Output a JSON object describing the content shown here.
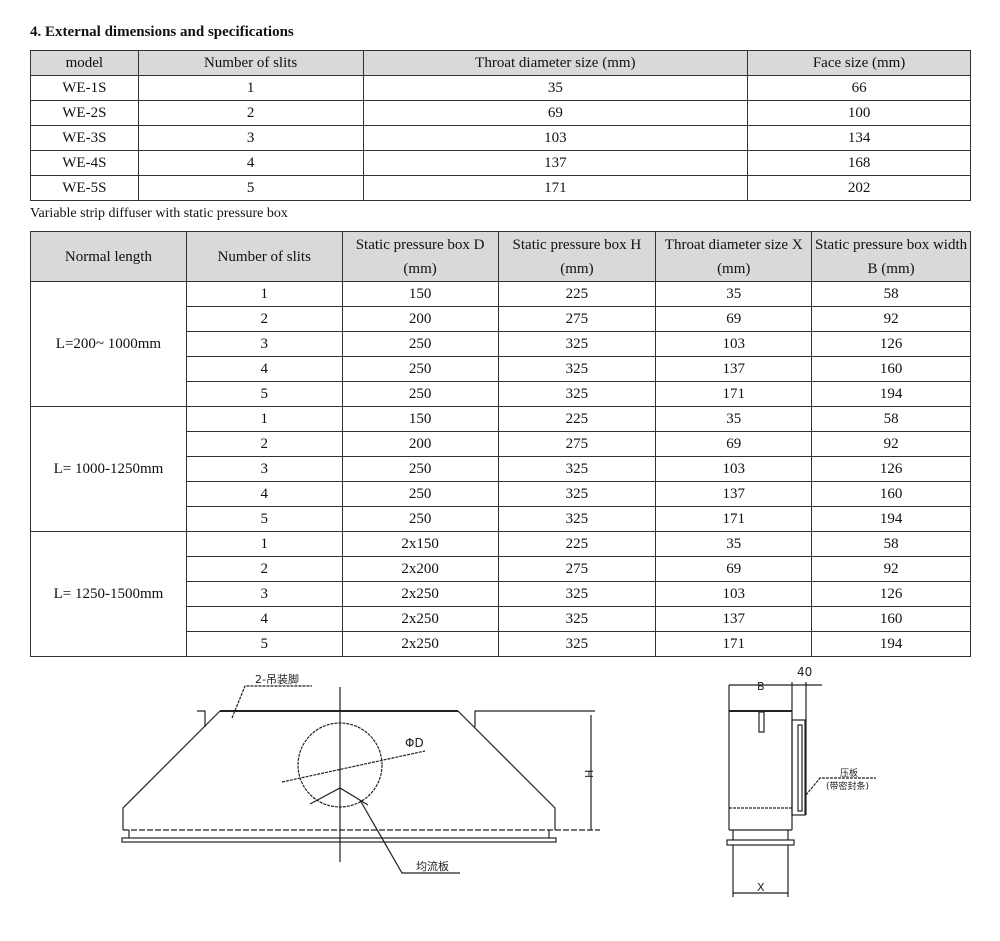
{
  "title": "4. External dimensions and specifications",
  "table1": {
    "headers": [
      "model",
      "Number of slits",
      "Throat diameter size (mm)",
      "Face size (mm)"
    ],
    "rows": [
      [
        "WE-1S",
        "1",
        "35",
        "66"
      ],
      [
        "WE-2S",
        "2",
        "69",
        "100"
      ],
      [
        "WE-3S",
        "3",
        "103",
        "134"
      ],
      [
        "WE-4S",
        "4",
        "137",
        "168"
      ],
      [
        "WE-5S",
        "5",
        "171",
        "202"
      ]
    ]
  },
  "caption": "Variable strip diffuser with static pressure box",
  "table2": {
    "headers": [
      "Normal length",
      "Number of slits",
      "Static pressure box D (mm)",
      "Static pressure box H (mm)",
      "Throat diameter size X (mm)",
      "Static pressure box width B (mm)"
    ],
    "groups": [
      {
        "length": "L=200~ 1000mm",
        "rows": [
          [
            "1",
            "150",
            "225",
            "35",
            "58"
          ],
          [
            "2",
            "200",
            "275",
            "69",
            "92"
          ],
          [
            "3",
            "250",
            "325",
            "103",
            "126"
          ],
          [
            "4",
            "250",
            "325",
            "137",
            "160"
          ],
          [
            "5",
            "250",
            "325",
            "171",
            "194"
          ]
        ]
      },
      {
        "length": "L= 1000-1250mm",
        "rows": [
          [
            "1",
            "150",
            "225",
            "35",
            "58"
          ],
          [
            "2",
            "200",
            "275",
            "69",
            "92"
          ],
          [
            "3",
            "250",
            "325",
            "103",
            "126"
          ],
          [
            "4",
            "250",
            "325",
            "137",
            "160"
          ],
          [
            "5",
            "250",
            "325",
            "171",
            "194"
          ]
        ]
      },
      {
        "length": "L= 1250-1500mm",
        "rows": [
          [
            "1",
            "2x150",
            "225",
            "35",
            "58"
          ],
          [
            "2",
            "2x200",
            "275",
            "69",
            "92"
          ],
          [
            "3",
            "2x250",
            "325",
            "103",
            "126"
          ],
          [
            "4",
            "2x250",
            "325",
            "137",
            "160"
          ],
          [
            "5",
            "2x250",
            "325",
            "171",
            "194"
          ]
        ]
      }
    ]
  },
  "drawing": {
    "front": {
      "hanger_label": "2-吊装脚",
      "diameter_label": "ΦD",
      "height_label": "H",
      "plate_label": "均流板"
    },
    "side": {
      "width_label": "B",
      "offset_label": "40",
      "press_label": "压板",
      "seal_label": "(带密封条)",
      "throat_label": "X"
    }
  }
}
